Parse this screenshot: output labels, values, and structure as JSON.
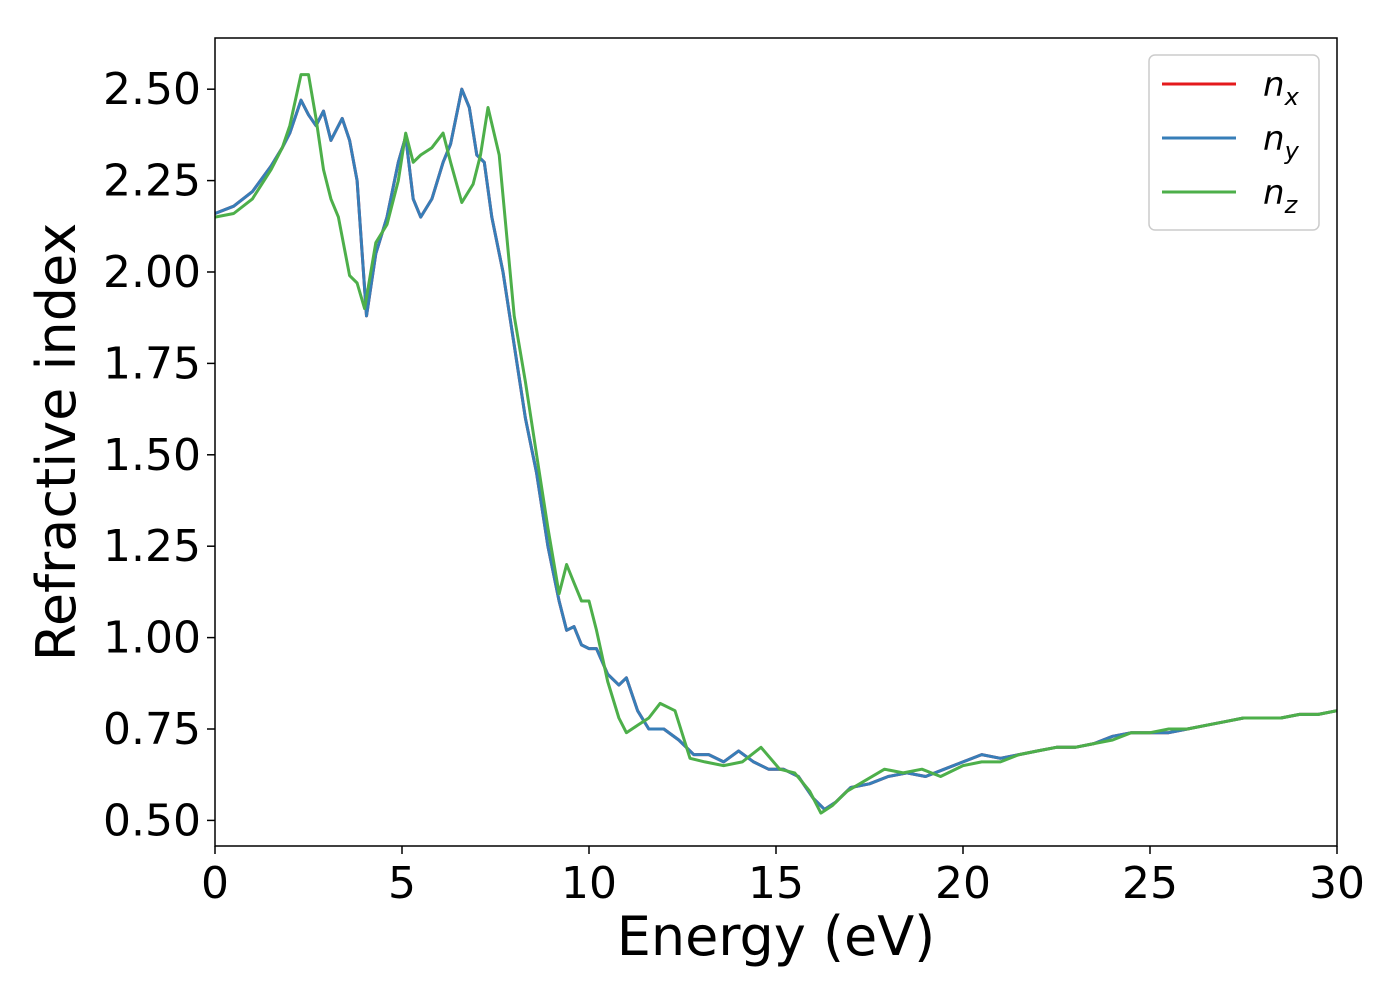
{
  "chart_data": {
    "type": "line",
    "title": "",
    "xlabel": "Energy (eV)",
    "ylabel": "Refractive index",
    "xlim": [
      0,
      30
    ],
    "ylim": [
      0.43,
      2.64
    ],
    "xticks": [
      0,
      5,
      10,
      15,
      20,
      25,
      30
    ],
    "xtick_labels": [
      "0",
      "5",
      "10",
      "15",
      "20",
      "25",
      "30"
    ],
    "yticks": [
      0.5,
      0.75,
      1.0,
      1.25,
      1.5,
      1.75,
      2.0,
      2.25,
      2.5
    ],
    "ytick_labels": [
      "0.50",
      "0.75",
      "1.00",
      "1.25",
      "1.50",
      "1.75",
      "2.00",
      "2.25",
      "2.50"
    ],
    "grid": false,
    "legend_position": "top-right",
    "series": [
      {
        "name": "n_x",
        "label_main": "n",
        "label_sub": "x",
        "color": "#e41a1c",
        "x": [
          0,
          0.5,
          1.0,
          1.5,
          1.8,
          2.0,
          2.3,
          2.5,
          2.7,
          2.9,
          3.1,
          3.4,
          3.6,
          3.8,
          4.05,
          4.3,
          4.6,
          4.9,
          5.1,
          5.3,
          5.5,
          5.8,
          6.1,
          6.3,
          6.6,
          6.8,
          7.0,
          7.2,
          7.4,
          7.7,
          8.0,
          8.3,
          8.6,
          8.9,
          9.2,
          9.4,
          9.6,
          9.8,
          10.0,
          10.2,
          10.5,
          10.8,
          11.0,
          11.3,
          11.6,
          12.0,
          12.4,
          12.8,
          13.2,
          13.6,
          14.0,
          14.4,
          14.8,
          15.2,
          15.6,
          16.0,
          16.3,
          16.6,
          17.0,
          17.5,
          18.0,
          18.5,
          19.0,
          19.5,
          20.0,
          20.5,
          21.0,
          21.5,
          22.0,
          22.5,
          23.0,
          23.5,
          24.0,
          24.5,
          25.0,
          25.5,
          26.0,
          26.5,
          27.0,
          27.5,
          28.0,
          28.5,
          29.0,
          29.5,
          30.0
        ],
        "values": [
          2.16,
          2.18,
          2.22,
          2.29,
          2.34,
          2.38,
          2.47,
          2.43,
          2.4,
          2.44,
          2.36,
          2.42,
          2.36,
          2.25,
          1.88,
          2.05,
          2.15,
          2.3,
          2.37,
          2.2,
          2.15,
          2.2,
          2.3,
          2.35,
          2.5,
          2.45,
          2.32,
          2.3,
          2.15,
          2.0,
          1.8,
          1.6,
          1.45,
          1.25,
          1.1,
          1.02,
          1.03,
          0.98,
          0.97,
          0.97,
          0.9,
          0.87,
          0.89,
          0.8,
          0.75,
          0.75,
          0.72,
          0.68,
          0.68,
          0.66,
          0.69,
          0.66,
          0.64,
          0.64,
          0.62,
          0.56,
          0.53,
          0.55,
          0.59,
          0.6,
          0.62,
          0.63,
          0.62,
          0.64,
          0.66,
          0.68,
          0.67,
          0.68,
          0.69,
          0.7,
          0.7,
          0.71,
          0.73,
          0.74,
          0.74,
          0.74,
          0.75,
          0.76,
          0.77,
          0.78,
          0.78,
          0.78,
          0.79,
          0.79,
          0.8
        ]
      },
      {
        "name": "n_y",
        "label_main": "n",
        "label_sub": "y",
        "color": "#377eb8",
        "x": [
          0,
          0.5,
          1.0,
          1.5,
          1.8,
          2.0,
          2.3,
          2.5,
          2.7,
          2.9,
          3.1,
          3.4,
          3.6,
          3.8,
          4.05,
          4.3,
          4.6,
          4.9,
          5.1,
          5.3,
          5.5,
          5.8,
          6.1,
          6.3,
          6.6,
          6.8,
          7.0,
          7.2,
          7.4,
          7.7,
          8.0,
          8.3,
          8.6,
          8.9,
          9.2,
          9.4,
          9.6,
          9.8,
          10.0,
          10.2,
          10.5,
          10.8,
          11.0,
          11.3,
          11.6,
          12.0,
          12.4,
          12.8,
          13.2,
          13.6,
          14.0,
          14.4,
          14.8,
          15.2,
          15.6,
          16.0,
          16.3,
          16.6,
          17.0,
          17.5,
          18.0,
          18.5,
          19.0,
          19.5,
          20.0,
          20.5,
          21.0,
          21.5,
          22.0,
          22.5,
          23.0,
          23.5,
          24.0,
          24.5,
          25.0,
          25.5,
          26.0,
          26.5,
          27.0,
          27.5,
          28.0,
          28.5,
          29.0,
          29.5,
          30.0
        ],
        "values": [
          2.16,
          2.18,
          2.22,
          2.29,
          2.34,
          2.38,
          2.47,
          2.43,
          2.4,
          2.44,
          2.36,
          2.42,
          2.36,
          2.25,
          1.88,
          2.05,
          2.15,
          2.3,
          2.37,
          2.2,
          2.15,
          2.2,
          2.3,
          2.35,
          2.5,
          2.45,
          2.32,
          2.3,
          2.15,
          2.0,
          1.8,
          1.6,
          1.45,
          1.25,
          1.1,
          1.02,
          1.03,
          0.98,
          0.97,
          0.97,
          0.9,
          0.87,
          0.89,
          0.8,
          0.75,
          0.75,
          0.72,
          0.68,
          0.68,
          0.66,
          0.69,
          0.66,
          0.64,
          0.64,
          0.62,
          0.56,
          0.53,
          0.55,
          0.59,
          0.6,
          0.62,
          0.63,
          0.62,
          0.64,
          0.66,
          0.68,
          0.67,
          0.68,
          0.69,
          0.7,
          0.7,
          0.71,
          0.73,
          0.74,
          0.74,
          0.74,
          0.75,
          0.76,
          0.77,
          0.78,
          0.78,
          0.78,
          0.79,
          0.79,
          0.8
        ]
      },
      {
        "name": "n_z",
        "label_main": "n",
        "label_sub": "z",
        "color": "#4daf4a",
        "x": [
          0,
          0.5,
          1.0,
          1.5,
          1.8,
          2.0,
          2.3,
          2.5,
          2.7,
          2.9,
          3.1,
          3.3,
          3.6,
          3.8,
          4.0,
          4.3,
          4.6,
          4.9,
          5.1,
          5.3,
          5.5,
          5.8,
          6.1,
          6.3,
          6.6,
          6.9,
          7.1,
          7.3,
          7.6,
          8.0,
          8.3,
          8.6,
          8.9,
          9.2,
          9.4,
          9.6,
          9.8,
          10.0,
          10.2,
          10.5,
          10.8,
          11.0,
          11.3,
          11.6,
          11.9,
          12.3,
          12.7,
          13.1,
          13.6,
          14.1,
          14.6,
          15.1,
          15.5,
          15.9,
          16.2,
          16.5,
          16.9,
          17.4,
          17.9,
          18.4,
          18.9,
          19.4,
          20.0,
          20.5,
          21.0,
          21.5,
          22.0,
          22.5,
          23.0,
          23.5,
          24.0,
          24.5,
          25.0,
          25.5,
          26.0,
          26.5,
          27.0,
          27.5,
          28.0,
          28.5,
          29.0,
          29.5,
          30.0
        ],
        "values": [
          2.15,
          2.16,
          2.2,
          2.28,
          2.34,
          2.4,
          2.54,
          2.54,
          2.42,
          2.28,
          2.2,
          2.15,
          1.99,
          1.97,
          1.9,
          2.08,
          2.13,
          2.25,
          2.38,
          2.3,
          2.32,
          2.34,
          2.38,
          2.3,
          2.19,
          2.24,
          2.32,
          2.45,
          2.32,
          1.88,
          1.7,
          1.5,
          1.3,
          1.12,
          1.2,
          1.15,
          1.1,
          1.1,
          1.02,
          0.88,
          0.78,
          0.74,
          0.76,
          0.78,
          0.82,
          0.8,
          0.67,
          0.66,
          0.65,
          0.66,
          0.7,
          0.64,
          0.63,
          0.58,
          0.52,
          0.54,
          0.58,
          0.61,
          0.64,
          0.63,
          0.64,
          0.62,
          0.65,
          0.66,
          0.66,
          0.68,
          0.69,
          0.7,
          0.7,
          0.71,
          0.72,
          0.74,
          0.74,
          0.75,
          0.75,
          0.76,
          0.77,
          0.78,
          0.78,
          0.78,
          0.79,
          0.79,
          0.8
        ]
      }
    ]
  }
}
